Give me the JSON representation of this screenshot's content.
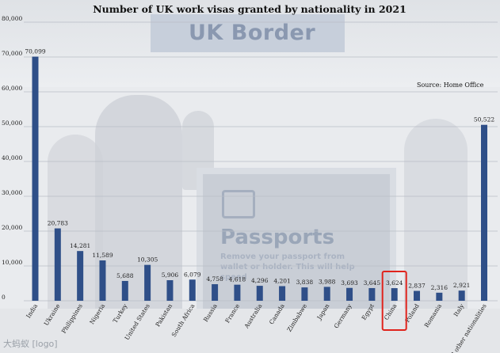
{
  "chart_data": {
    "type": "bar",
    "title": "Number of UK work visas granted by nationality in 2021",
    "source": "Source: Home Office",
    "categories": [
      "India",
      "Ukraine",
      "Philippines",
      "Nigeria",
      "Turkey",
      "United States",
      "Pakistan",
      "South Africa",
      "Russia",
      "France",
      "Australia",
      "Canada",
      "Zimbabwe",
      "Japan",
      "Germany",
      "Egypt",
      "China",
      "Poland",
      "Romania",
      "Italy",
      "All other nationalities"
    ],
    "values": [
      70099,
      20783,
      14281,
      11589,
      5688,
      10305,
      5906,
      6079,
      4758,
      4618,
      4296,
      4201,
      3838,
      3988,
      3693,
      3645,
      3624,
      2837,
      2316,
      2921,
      50522
    ],
    "value_labels": [
      "70,099",
      "20,783",
      "14,281",
      "11,589",
      "5,688",
      "10,305",
      "5,906",
      "6,079",
      "4,758",
      "4,618",
      "4,296",
      "4,201",
      "3,838",
      "3,988",
      "3,693",
      "3,645",
      "3,624",
      "2,837",
      "2,316",
      "2,921",
      "50,522"
    ],
    "ylim": [
      0,
      80000
    ],
    "yticks": [
      0,
      10000,
      20000,
      30000,
      40000,
      50000,
      60000,
      70000,
      80000
    ],
    "ytick_labels": [
      "0",
      "10,000",
      "20,000",
      "30,000",
      "40,000",
      "50,000",
      "60,000",
      "70,000",
      "80,000"
    ],
    "grid": true,
    "highlight_category": "China",
    "highlight_color": "#e0231c",
    "bar_color": "#2f4f88"
  },
  "background": {
    "sign_text": "UK Border",
    "panel_title": "Passports",
    "panel_text": "Remove your passport from wallet or holder. This will help speed"
  },
  "watermark": "大蚂蚁 [logo]"
}
